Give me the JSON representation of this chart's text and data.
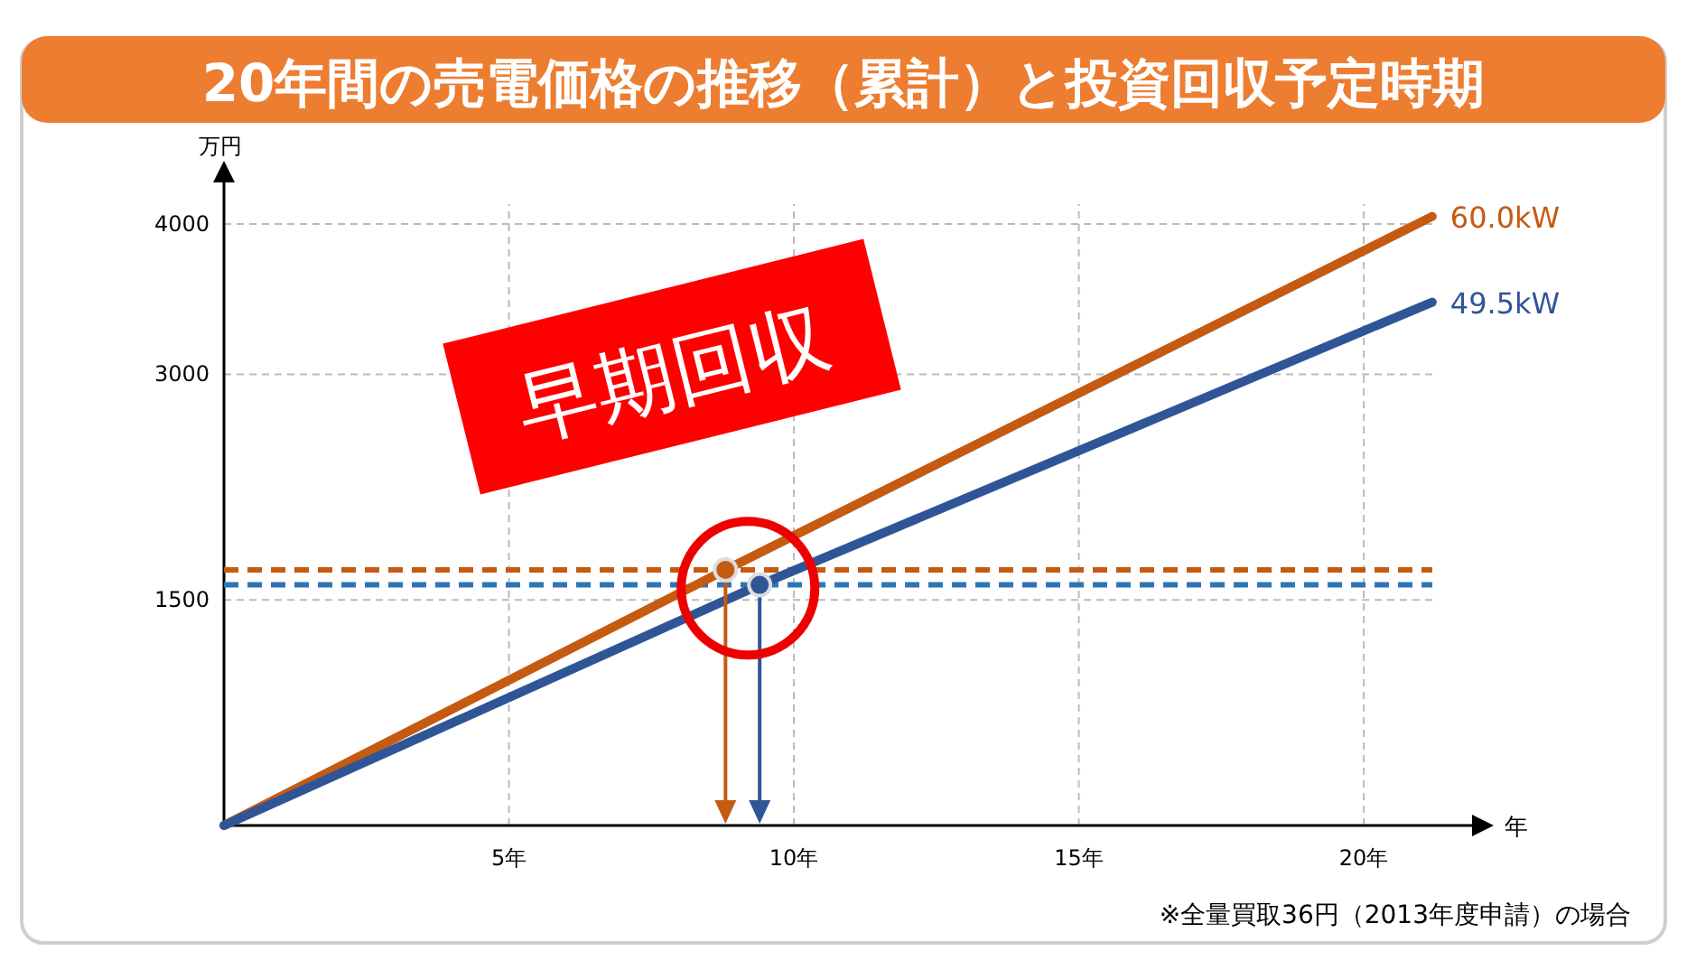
{
  "chart_data": {
    "type": "line",
    "title": "20年間の売電価格の推移（累計）と投資回収予定時期",
    "xlabel": "年",
    "ylabel": "万円",
    "xlim": [
      0,
      21.9
    ],
    "ylim": [
      0,
      4300
    ],
    "xticks": [
      {
        "value": 5,
        "label": "5年"
      },
      {
        "value": 10,
        "label": "10年"
      },
      {
        "value": 15,
        "label": "15年"
      },
      {
        "value": 20,
        "label": "20年"
      }
    ],
    "yticks": [
      1500,
      3000,
      4000
    ],
    "grid": true,
    "marker": "none",
    "series": [
      {
        "name": "60.0kW",
        "color": "#c55a11",
        "x": [
          0,
          8.8,
          21.2
        ],
        "values": [
          0,
          1700,
          4050
        ]
      },
      {
        "name": "49.5kW",
        "color": "#2f5597",
        "x": [
          0,
          9.4,
          21.2
        ],
        "values": [
          0,
          1600,
          3480
        ]
      },
      {
        "type": "scatter",
        "marker": "circle",
        "color": "#c55a11",
        "x": [
          8.8
        ],
        "values": [
          1700
        ]
      },
      {
        "type": "scatter",
        "marker": "circle",
        "color": "#2f5597",
        "x": [
          9.4
        ],
        "values": [
          1600
        ]
      }
    ],
    "ref_lines": [
      {
        "axis": "y",
        "value": 1700,
        "color": "#c55a11",
        "line_style": "dashed"
      },
      {
        "axis": "y",
        "value": 1600,
        "color": "#2e75b6",
        "line_style": "dashed"
      }
    ],
    "annotations": [
      "早期回収",
      "※全量買取36円（2013年度申請）の場合"
    ]
  }
}
